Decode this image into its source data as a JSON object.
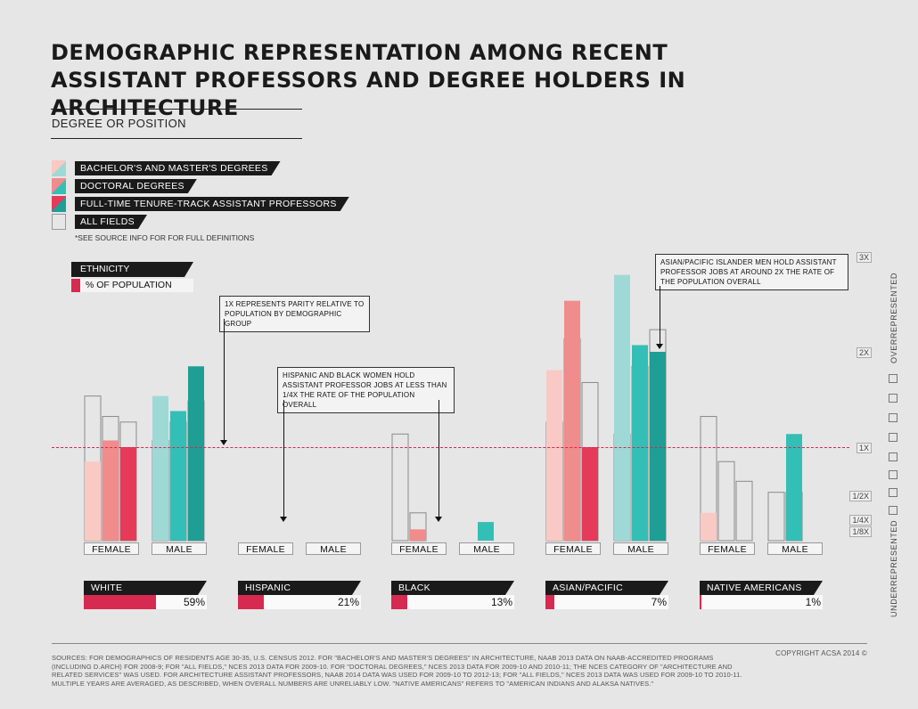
{
  "title_line1": "DEMOGRAPHIC REPRESENTATION AMONG RECENT",
  "title_line2": "ASSISTANT PROFESSORS AND DEGREE HOLDERS IN ARCHITECTURE",
  "section_label": "DEGREE OR POSITION",
  "legend": [
    {
      "label": "BACHELOR'S AND MASTER'S DEGREES",
      "female_color": "#f9c9c4",
      "male_color": "#9fd9d6"
    },
    {
      "label": "DOCTORAL DEGREES",
      "female_color": "#f08c8c",
      "male_color": "#33bfb5"
    },
    {
      "label": "FULL-TIME TENURE-TRACK ASSISTANT PROFESSORS",
      "female_color": "#e63a5a",
      "male_color": "#1e9e94"
    },
    {
      "label": "ALL FIELDS",
      "female_color": "none",
      "male_color": "none"
    }
  ],
  "note": "*SEE SOURCE INFO FOR FOR FULL DEFINITIONS",
  "ethnicity_key": {
    "title": "ETHNICITY",
    "pct_label": "% OF POPULATION"
  },
  "callouts": {
    "parity": "1X REPRESENTS PARITY RELATIVE TO POPULATION BY DEMOGRAPHIC GROUP",
    "hispanic_black": "HISPANIC AND BLACK WOMEN HOLD ASSISTANT PROFESSOR JOBS AT LESS THAN 1/4X THE RATE OF THE POPULATION OVERALL",
    "asian": "ASIAN/PACIFIC ISLANDER MEN HOLD ASSISTANT PROFESSOR JOBS AT AROUND 2X THE RATE OF THE POPULATION OVERALL"
  },
  "axis": {
    "ticks": [
      "3X",
      "2X",
      "1X",
      "1/2X",
      "1/4X",
      "1/8X"
    ],
    "tick_values": [
      3,
      2,
      1,
      0.5,
      0.25,
      0.125
    ],
    "over_label": "OVERREPRESENTED",
    "under_label": "UNDERREPRESENTED"
  },
  "sex_labels": {
    "female": "FEMALE",
    "male": "MALE"
  },
  "chart_data": {
    "type": "bar",
    "scale": "log2",
    "ylabel": "Representation relative to population (1X = parity)",
    "ylim": [
      0.125,
      3
    ],
    "series": [
      "BACHELOR'S AND MASTER'S DEGREES",
      "DOCTORAL DEGREES",
      "FULL-TIME TENURE-TRACK ASSISTANT PROFESSORS"
    ],
    "groups": [
      {
        "ethnicity": "WHITE",
        "population_pct": 59,
        "female": {
          "values": [
            0.9,
            1.05,
            1.0
          ],
          "all_fields": [
            1.45,
            1.25,
            1.2
          ]
        },
        "male": {
          "values": [
            1.45,
            1.3,
            1.8
          ],
          "all_fields": [
            1.05,
            1.2,
            1.4
          ]
        }
      },
      {
        "ethnicity": "HISPANIC",
        "population_pct": 21,
        "female": {
          "values": [
            0.37,
            0.42,
            0.19
          ],
          "all_fields": [
            0.43,
            0.27,
            0.16
          ]
        },
        "male": {
          "values": [
            0.5,
            0.17,
            0.3
          ],
          "all_fields": [
            0.24,
            0.2,
            0.2
          ]
        }
      },
      {
        "ethnicity": "BLACK",
        "population_pct": 13,
        "female": {
          "values": [
            0.24,
            0.55,
            0.17
          ],
          "all_fields": [
            1.1,
            0.62,
            0.47
          ]
        },
        "male": {
          "values": [
            0.37,
            0.58,
            0.28
          ],
          "all_fields": [
            0.46,
            0.43,
            0.39
          ]
        }
      },
      {
        "ethnicity": "ASIAN/PACIFIC ISLANDER",
        "population_pct": 7,
        "female": {
          "values": [
            1.75,
            2.9,
            1.0
          ],
          "all_fields": [
            1.2,
            2.2,
            1.6
          ]
        },
        "male": {
          "values": [
            3.5,
            2.1,
            2.0
          ],
          "all_fields": [
            1.1,
            1.8,
            2.35
          ]
        }
      },
      {
        "ethnicity": "NATIVE AMERICANS",
        "population_pct": 1,
        "female": {
          "values": [
            0.62,
            0.0,
            0.35
          ],
          "all_fields": [
            1.25,
            0.9,
            0.78
          ]
        },
        "male": {
          "values": [
            0.48,
            1.1,
            0.33
          ],
          "all_fields": [
            0.72,
            0.72,
            0.43
          ]
        }
      }
    ]
  },
  "sources": "SOURCES: FOR DEMOGRAPHICS OF RESIDENTS AGE 30-35, U.S. CENSUS 2012. FOR \"BACHELOR'S AND MASTER'S DEGREES\" IN ARCHITECTURE, NAAB 2013 DATA ON NAAB-ACCREDITED PROGRAMS (INCLUDING D.ARCH) FOR 2008-9; FOR \"ALL FIELDS,\" NCES 2013 DATA FOR 2009-10. FOR \"DOCTORAL DEGREES,\" NCES 2013 DATA FOR 2009-10 AND 2010-11; THE NCES CATEGORY OF \"ARCHITECTURE AND RELATED SERVICES\" WAS USED. FOR ARCHITECTURE ASSISTANT PROFESSORS, NAAB 2014 DATA WAS USED FOR 2009-10 TO 2012-13; FOR \"ALL FIELDS,\" NCES 2013 DATA WAS USED FOR 2009-10 TO 2010-11. MULTIPLE YEARS ARE AVERAGED, AS DESCRIBED, WHEN OVERALL NUMBERS ARE UNRELIABLY LOW. \"NATIVE AMERICANS\" REFERS TO \"AMERICAN INDIANS AND ALAKSA NATIVES.\"",
  "copyright": "COPYRIGHT ACSA 2014 ©"
}
